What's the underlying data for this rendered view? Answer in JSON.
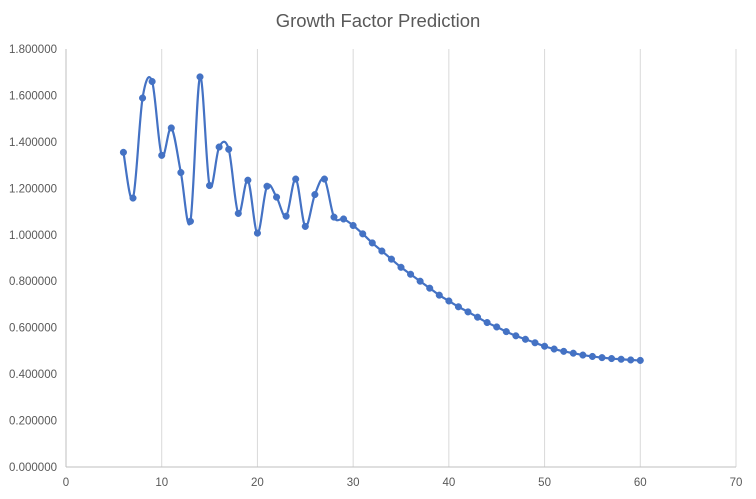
{
  "chart_data": {
    "type": "line",
    "title": "Growth Factor Prediction",
    "xlabel": "",
    "ylabel": "",
    "xlim": [
      0,
      70
    ],
    "ylim": [
      0,
      1.8
    ],
    "x_ticks": [
      0,
      10,
      20,
      30,
      40,
      50,
      60,
      70
    ],
    "y_ticks": [
      0,
      0.2,
      0.4,
      0.6,
      0.8,
      1.0,
      1.2,
      1.4,
      1.6,
      1.8
    ],
    "y_tick_labels": [
      "0.000000",
      "0.200000",
      "0.400000",
      "0.600000",
      "0.800000",
      "1.000000",
      "1.200000",
      "1.400000",
      "1.600000",
      "1.800000"
    ],
    "x_tick_labels": [
      "0",
      "10",
      "20",
      "30",
      "40",
      "50",
      "60",
      "70"
    ],
    "grid": "vertical",
    "legend": "none",
    "colors": {
      "series": "#4472C4",
      "grid": "#D9D9D9",
      "axis": "#BFBFBF",
      "text": "#595959"
    },
    "series": [
      {
        "x": [
          6,
          7,
          8,
          9,
          10,
          11,
          12,
          13,
          14,
          15,
          16,
          17,
          18,
          19,
          20,
          21,
          22,
          23,
          24,
          25,
          26,
          27,
          28,
          29,
          30,
          31,
          32,
          33,
          34,
          35,
          36,
          37,
          38,
          39,
          40,
          41,
          42,
          43,
          44,
          45,
          46,
          47,
          48,
          49,
          50,
          51,
          52,
          53,
          54,
          55,
          56,
          57,
          58,
          59,
          60
        ],
        "values": [
          1.355,
          1.158,
          1.589,
          1.66,
          1.342,
          1.46,
          1.268,
          1.058,
          1.68,
          1.212,
          1.378,
          1.368,
          1.092,
          1.235,
          1.007,
          1.209,
          1.162,
          1.08,
          1.24,
          1.036,
          1.173,
          1.24,
          1.076,
          1.068,
          1.04,
          1.004,
          0.965,
          0.93,
          0.895,
          0.86,
          0.83,
          0.8,
          0.77,
          0.74,
          0.715,
          0.69,
          0.668,
          0.645,
          0.622,
          0.603,
          0.583,
          0.565,
          0.55,
          0.535,
          0.52,
          0.508,
          0.498,
          0.49,
          0.482,
          0.476,
          0.471,
          0.467,
          0.464,
          0.461,
          0.459
        ]
      }
    ]
  }
}
